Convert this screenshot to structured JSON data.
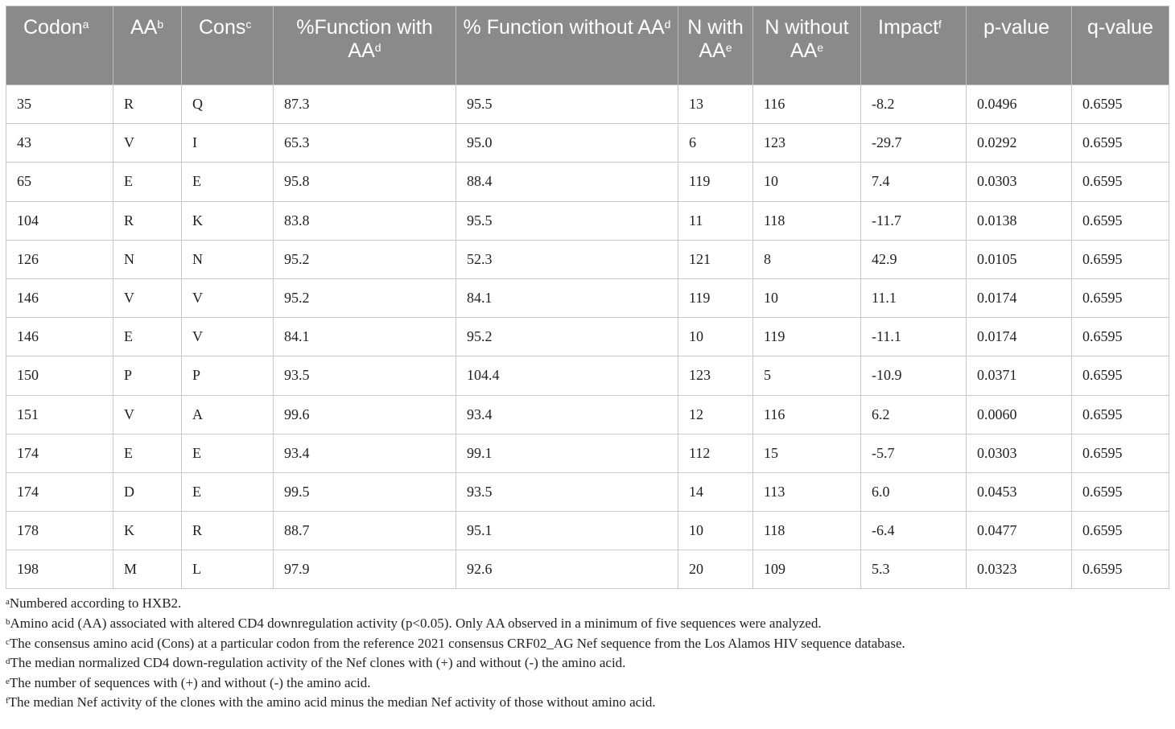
{
  "headers": [
    {
      "text": "Codon",
      "sup": "a"
    },
    {
      "text": "AA",
      "sup": "b"
    },
    {
      "text": "Cons",
      "sup": "c"
    },
    {
      "text": "%Function with AA",
      "sup": "d"
    },
    {
      "text": "% Function without AA",
      "sup": "d"
    },
    {
      "text": "N with AA",
      "sup": "e"
    },
    {
      "text": "N without AA",
      "sup": "e"
    },
    {
      "text": "Impact",
      "sup": "f"
    },
    {
      "text": "p-value",
      "sup": ""
    },
    {
      "text": "q-value",
      "sup": ""
    }
  ],
  "rows": [
    [
      "35",
      "R",
      "Q",
      "87.3",
      "95.5",
      "13",
      "116",
      "-8.2",
      "0.0496",
      "0.6595"
    ],
    [
      "43",
      "V",
      "I",
      "65.3",
      "95.0",
      "6",
      "123",
      "-29.7",
      "0.0292",
      "0.6595"
    ],
    [
      "65",
      "E",
      "E",
      "95.8",
      "88.4",
      "119",
      "10",
      "7.4",
      "0.0303",
      "0.6595"
    ],
    [
      "104",
      "R",
      "K",
      "83.8",
      "95.5",
      "11",
      "118",
      "-11.7",
      "0.0138",
      "0.6595"
    ],
    [
      "126",
      "N",
      "N",
      "95.2",
      "52.3",
      "121",
      "8",
      "42.9",
      "0.0105",
      "0.6595"
    ],
    [
      "146",
      "V",
      "V",
      "95.2",
      "84.1",
      "119",
      "10",
      "11.1",
      "0.0174",
      "0.6595"
    ],
    [
      "146",
      "E",
      "V",
      "84.1",
      "95.2",
      "10",
      "119",
      "-11.1",
      "0.0174",
      "0.6595"
    ],
    [
      "150",
      "P",
      "P",
      "93.5",
      "104.4",
      "123",
      "5",
      "-10.9",
      "0.0371",
      "0.6595"
    ],
    [
      "151",
      "V",
      "A",
      "99.6",
      "93.4",
      "12",
      "116",
      "6.2",
      "0.0060",
      "0.6595"
    ],
    [
      "174",
      "E",
      "E",
      "93.4",
      "99.1",
      "112",
      "15",
      "-5.7",
      "0.0303",
      "0.6595"
    ],
    [
      "174",
      "D",
      "E",
      "99.5",
      "93.5",
      "14",
      "113",
      "6.0",
      "0.0453",
      "0.6595"
    ],
    [
      "178",
      "K",
      "R",
      "88.7",
      "95.1",
      "10",
      "118",
      "-6.4",
      "0.0477",
      "0.6595"
    ],
    [
      "198",
      "M",
      "L",
      "97.9",
      "92.6",
      "20",
      "109",
      "5.3",
      "0.0323",
      "0.6595"
    ]
  ],
  "footnotes": [
    {
      "mark": "a",
      "text": "Numbered according to HXB2."
    },
    {
      "mark": "b",
      "text": "Amino acid (AA) associated with altered CD4 downregulation activity (p<0.05). Only AA observed in a minimum of five sequences were analyzed."
    },
    {
      "mark": "c",
      "text": "The consensus amino acid (Cons) at a particular codon from the reference 2021 consensus CRF02_AG Nef sequence from the Los Alamos HIV sequence database."
    },
    {
      "mark": "d",
      "text": "The median normalized CD4 down-regulation activity of the Nef clones with (+) and without (-) the amino acid."
    },
    {
      "mark": "e",
      "text": "The number of sequences with (+) and without (-) the amino acid."
    },
    {
      "mark": "f",
      "text": "The median Nef activity of the clones with the amino acid minus the median Nef activity of those without amino acid."
    }
  ]
}
